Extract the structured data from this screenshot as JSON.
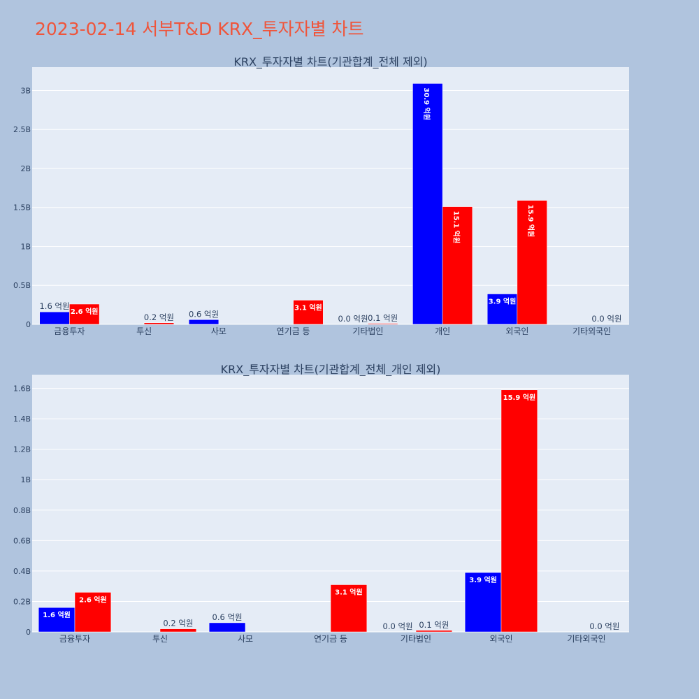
{
  "page": {
    "title": "2023-02-14 서부T&D KRX_투자자별 차트"
  },
  "colors": {
    "background": "#b0c4de",
    "plot_bg": "#e5ecf6",
    "grid": "#ffffff",
    "title": "#ef553b",
    "text": "#2a3f5f"
  },
  "chart_data": [
    {
      "type": "bar",
      "title": "KRX_투자자별 차트(기관합계_전체 제외)",
      "categories": [
        "금융투자",
        "투신",
        "사모",
        "연기금 등",
        "기타법인",
        "개인",
        "외국인",
        "기타외국인"
      ],
      "ylim": [
        0,
        3300000000
      ],
      "yticks": [
        0,
        500000000,
        1000000000,
        1500000000,
        2000000000,
        2500000000,
        3000000000
      ],
      "ytick_labels": [
        "0",
        "0.5B",
        "1B",
        "1.5B",
        "2B",
        "2.5B",
        "3B"
      ],
      "grid": true,
      "series": [
        {
          "color": "#0000ff",
          "values": [
            160000000,
            0,
            60000000,
            0,
            0,
            3090000000,
            390000000,
            0
          ],
          "labels": [
            "1.6 억원",
            "",
            "0.6 억원",
            "",
            "0.0 억원",
            "30.9 억원",
            "3.9 억원",
            ""
          ]
        },
        {
          "color": "#ff0000",
          "values": [
            260000000,
            20000000,
            0,
            310000000,
            10000000,
            1510000000,
            1590000000,
            0
          ],
          "labels": [
            "2.6 억원",
            "0.2 억원",
            "",
            "3.1 억원",
            "0.1 억원",
            "15.1 억원",
            "15.9 억원",
            "0.0 억원"
          ]
        }
      ]
    },
    {
      "type": "bar",
      "title": "KRX_투자자별 차트(기관합계_전체_개인 제외)",
      "categories": [
        "금융투자",
        "투신",
        "사모",
        "연기금 등",
        "기타법인",
        "외국인",
        "기타외국인"
      ],
      "ylim": [
        0,
        1690000000
      ],
      "yticks": [
        0,
        200000000,
        400000000,
        600000000,
        800000000,
        1000000000,
        1200000000,
        1400000000,
        1600000000
      ],
      "ytick_labels": [
        "0",
        "0.2B",
        "0.4B",
        "0.6B",
        "0.8B",
        "1B",
        "1.2B",
        "1.4B",
        "1.6B"
      ],
      "grid": true,
      "series": [
        {
          "color": "#0000ff",
          "values": [
            160000000,
            0,
            60000000,
            0,
            0,
            390000000,
            0
          ],
          "labels": [
            "1.6 억원",
            "",
            "0.6 억원",
            "",
            "0.0 억원",
            "3.9 억원",
            ""
          ]
        },
        {
          "color": "#ff0000",
          "values": [
            260000000,
            20000000,
            0,
            310000000,
            10000000,
            1590000000,
            0
          ],
          "labels": [
            "2.6 억원",
            "0.2 억원",
            "",
            "3.1 억원",
            "0.1 억원",
            "15.9 억원",
            "0.0 억원"
          ]
        }
      ]
    }
  ]
}
